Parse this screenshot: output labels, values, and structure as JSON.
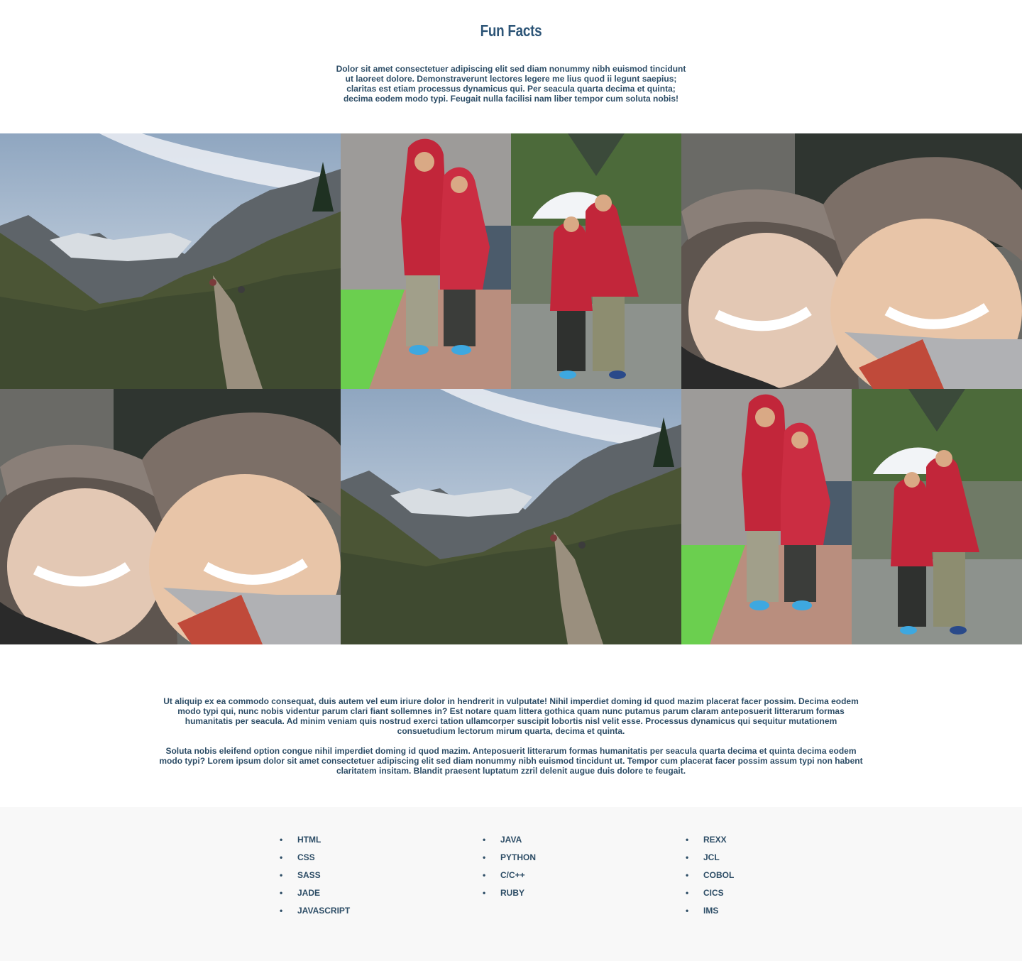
{
  "header": {
    "title": "Fun Facts",
    "intro": "Dolor sit amet consectetuer adipiscing elit sed diam nonummy nibh euismod tincidunt ut laoreet dolore. Demonstraverunt lectores legere me lius quod ii legunt saepius; claritas est etiam processus dynamicus qui. Per seacula quarta decima et quinta; decima eodem modo typi. Feugait nulla facilisi nam liber tempor cum soluta nobis!"
  },
  "gallery": {
    "photos": [
      {
        "name": "mountain-trail-photo",
        "subject": "mountain-hike"
      },
      {
        "name": "couple-red-jackets-deck-photo",
        "subject": "couple-deck"
      },
      {
        "name": "couple-umbrella-photo",
        "subject": "couple-umbrella"
      },
      {
        "name": "couple-fur-hats-selfie-photo",
        "subject": "selfie"
      },
      {
        "name": "couple-fur-hats-selfie-photo-2",
        "subject": "selfie"
      },
      {
        "name": "mountain-trail-photo-2",
        "subject": "mountain-hike"
      },
      {
        "name": "couple-red-jackets-deck-photo-2",
        "subject": "couple-deck"
      },
      {
        "name": "couple-umbrella-photo-2",
        "subject": "couple-umbrella"
      }
    ]
  },
  "body": {
    "paragraph1": "Ut aliquip ex ea commodo consequat, duis autem vel eum iriure dolor in hendrerit in vulputate! Nihil imperdiet doming id quod mazim placerat facer possim. Decima eodem modo typi qui, nunc nobis videntur parum clari fiant sollemnes in? Est notare quam littera gothica quam nunc putamus parum claram anteposuerit litterarum formas humanitatis per seacula. Ad minim veniam quis nostrud exerci tation ullamcorper suscipit lobortis nisl velit esse. Processus dynamicus qui sequitur mutationem consuetudium lectorum mirum quarta, decima et quinta.",
    "paragraph2": "Soluta nobis eleifend option congue nihil imperdiet doming id quod mazim. Anteposuerit litterarum formas humanitatis per seacula quarta decima et quinta decima eodem modo typi? Lorem ipsum dolor sit amet consectetuer adipiscing elit sed diam nonummy nibh euismod tincidunt ut. Tempor cum placerat facer possim assum typi non habent claritatem insitam. Blandit praesent luptatum zzril delenit augue duis dolore te feugait."
  },
  "skills": {
    "bullet": "•",
    "columns": [
      [
        "HTML",
        "CSS",
        "SASS",
        "JADE",
        "JAVASCRIPT"
      ],
      [
        "JAVA",
        "PYTHON",
        "C/C++",
        "RUBY"
      ],
      [
        "REXX",
        "JCL",
        "COBOL",
        "CICS",
        "IMS"
      ]
    ]
  },
  "colors": {
    "text": "#2d4d66",
    "title": "#2d5577",
    "footer_bg": "#f8f8f8",
    "jacket_red": "#c2263a"
  }
}
